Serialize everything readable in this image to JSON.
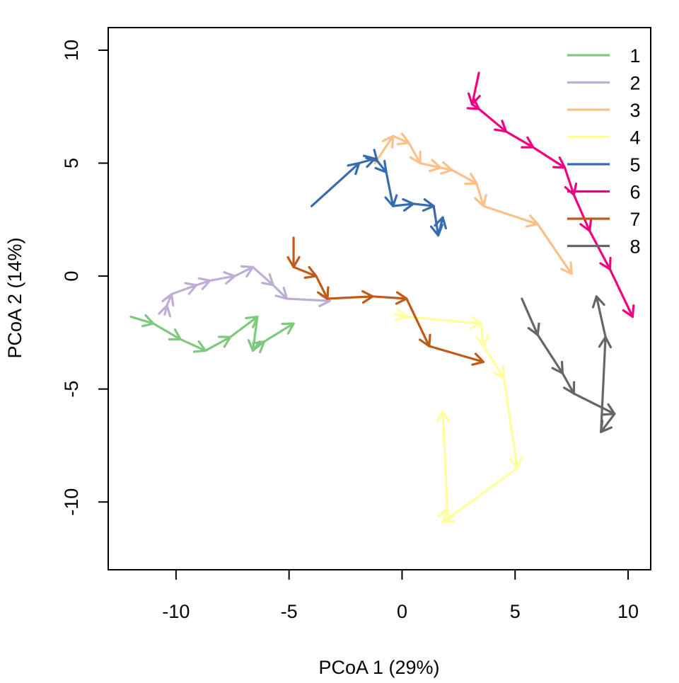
{
  "chart_data": {
    "type": "line",
    "title": "",
    "xlabel": "PCoA 1 (29%)",
    "ylabel": "PCoA 2 (14%)",
    "xlim": [
      -13,
      11
    ],
    "ylim": [
      -13,
      11
    ],
    "xticks": [
      -10,
      -5,
      0,
      5,
      10
    ],
    "yticks": [
      -10,
      -5,
      0,
      5,
      10
    ],
    "grid": false,
    "legend_position": "top-right",
    "arrows": true,
    "series": [
      {
        "name": "1",
        "color": "#7FC97F",
        "points": [
          [
            -12.0,
            -1.8
          ],
          [
            -11.0,
            -2.1
          ],
          [
            -9.8,
            -2.8
          ],
          [
            -8.7,
            -3.3
          ],
          [
            -7.6,
            -2.7
          ],
          [
            -6.4,
            -1.8
          ],
          [
            -6.6,
            -3.3
          ],
          [
            -6.1,
            -2.9
          ],
          [
            -4.8,
            -2.1
          ]
        ]
      },
      {
        "name": "2",
        "color": "#BEAED4",
        "points": [
          [
            -10.5,
            -1.7
          ],
          [
            -10.4,
            -1.3
          ],
          [
            -10.2,
            -0.8
          ],
          [
            -9.1,
            -0.4
          ],
          [
            -8.5,
            -0.2
          ],
          [
            -7.4,
            0.0
          ],
          [
            -6.6,
            0.4
          ],
          [
            -5.7,
            -0.4
          ],
          [
            -5.1,
            -1.0
          ],
          [
            -3.2,
            -1.1
          ]
        ]
      },
      {
        "name": "3",
        "color": "#FDC086",
        "points": [
          [
            -1.2,
            5.0
          ],
          [
            -0.4,
            6.2
          ],
          [
            0.3,
            5.9
          ],
          [
            0.8,
            5.0
          ],
          [
            1.7,
            4.8
          ],
          [
            2.2,
            4.7
          ],
          [
            3.3,
            4.1
          ],
          [
            3.6,
            3.1
          ],
          [
            6.0,
            2.3
          ],
          [
            7.5,
            0.1
          ]
        ]
      },
      {
        "name": "4",
        "color": "#FFFF99",
        "points": [
          [
            -0.3,
            -1.7
          ],
          [
            0.2,
            -1.8
          ],
          [
            3.5,
            -2.1
          ],
          [
            3.6,
            -3.1
          ],
          [
            4.5,
            -4.5
          ],
          [
            5.1,
            -8.5
          ],
          [
            1.8,
            -10.9
          ],
          [
            2.0,
            -10.3
          ],
          [
            1.8,
            -6.0
          ]
        ]
      },
      {
        "name": "5",
        "color": "#386CB0",
        "points": [
          [
            -4.0,
            3.1
          ],
          [
            -1.9,
            5.0
          ],
          [
            -1.2,
            5.2
          ],
          [
            -1.1,
            5.1
          ],
          [
            -0.7,
            4.6
          ],
          [
            -0.4,
            3.1
          ],
          [
            0.5,
            3.2
          ],
          [
            1.4,
            3.1
          ],
          [
            1.6,
            1.8
          ],
          [
            1.8,
            2.6
          ]
        ]
      },
      {
        "name": "6",
        "color": "#F0027F",
        "points": [
          [
            3.4,
            9.0
          ],
          [
            3.1,
            7.6
          ],
          [
            3.4,
            7.4
          ],
          [
            4.6,
            6.4
          ],
          [
            5.8,
            5.7
          ],
          [
            7.2,
            4.8
          ],
          [
            7.6,
            3.6
          ],
          [
            8.3,
            2.0
          ],
          [
            9.2,
            0.3
          ],
          [
            10.2,
            -1.8
          ]
        ]
      },
      {
        "name": "7",
        "color": "#BF5B17",
        "points": [
          [
            -4.8,
            1.7
          ],
          [
            -4.8,
            0.4
          ],
          [
            -3.8,
            0.0
          ],
          [
            -3.3,
            -1.0
          ],
          [
            -1.3,
            -0.9
          ],
          [
            0.2,
            -1.0
          ],
          [
            1.2,
            -3.1
          ],
          [
            3.6,
            -3.8
          ]
        ]
      },
      {
        "name": "8",
        "color": "#666666",
        "points": [
          [
            5.3,
            -1.0
          ],
          [
            6.0,
            -2.6
          ],
          [
            7.1,
            -4.3
          ],
          [
            7.6,
            -5.2
          ],
          [
            9.4,
            -6.1
          ],
          [
            8.8,
            -6.9
          ],
          [
            9.0,
            -2.7
          ],
          [
            8.6,
            -0.9
          ]
        ]
      }
    ]
  }
}
